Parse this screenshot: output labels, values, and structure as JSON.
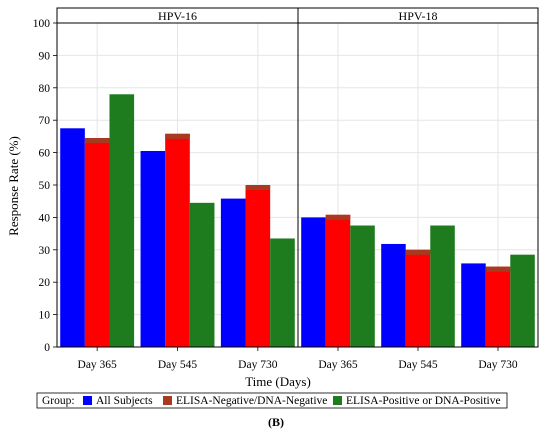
{
  "chart_data": {
    "type": "bar",
    "panels": [
      {
        "title": "HPV-16",
        "categories": [
          "Day 365",
          "Day 545",
          "Day 730"
        ],
        "series": [
          {
            "name": "All Subjects",
            "values": [
              67.5,
              60.5,
              45.8
            ]
          },
          {
            "name": "ELISA-Negative/DNA-Negative",
            "values": [
              64.5,
              65.8,
              50.0
            ]
          },
          {
            "name": "ELISA-Positive or DNA-Positive",
            "values": [
              78.0,
              44.5,
              33.5
            ]
          }
        ]
      },
      {
        "title": "HPV-18",
        "categories": [
          "Day 365",
          "Day 545",
          "Day 730"
        ],
        "series": [
          {
            "name": "All Subjects",
            "values": [
              40.0,
              31.8,
              25.8
            ]
          },
          {
            "name": "ELISA-Negative/DNA-Negative",
            "values": [
              40.8,
              30.0,
              24.8
            ]
          },
          {
            "name": "ELISA-Positive or DNA-Positive",
            "values": [
              37.5,
              37.5,
              28.5
            ]
          }
        ]
      }
    ],
    "series_colors": [
      "#0000ff",
      "#ff0000",
      "#1e7b1e"
    ],
    "top_band_colors": [
      "#0000ff",
      "#a83a22",
      "#1e7b1e"
    ],
    "ylabel": "Response Rate (%)",
    "xlabel": "Time (Days)",
    "ylim": [
      0,
      100
    ],
    "yticks": [
      0,
      10,
      20,
      30,
      40,
      50,
      60,
      70,
      80,
      90,
      100
    ],
    "grid": true,
    "legend": {
      "position": "bottom",
      "title": "Group:",
      "entries": [
        "All Subjects",
        "ELISA-Negative/DNA-Negative",
        "ELISA-Positive or DNA-Positive"
      ]
    },
    "figure_label": "(B)"
  }
}
